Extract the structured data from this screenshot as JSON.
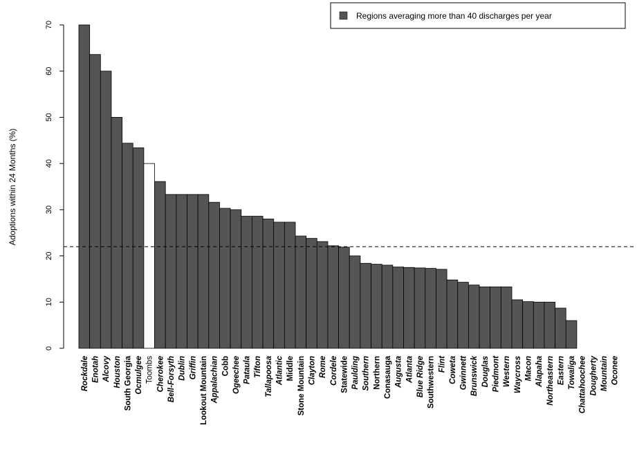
{
  "chart_data": {
    "type": "bar",
    "title": "",
    "xlabel": "",
    "ylabel": "Adoptions within 24 Months (%)",
    "ylim": [
      0,
      70
    ],
    "yticks": [
      0,
      10,
      20,
      30,
      40,
      50,
      60,
      70
    ],
    "reference_line": 22,
    "legend": {
      "label": "Regions averaging more than 40 discharges per year",
      "color": "#555555",
      "placement": "top-right"
    },
    "colors": {
      "high_volume": "#555555",
      "low_volume": "#ffffff",
      "outline": "#000000"
    },
    "categories": [
      "Rockdale",
      "Enotah",
      "Alcovy",
      "Houston",
      "South Georgia",
      "Ocmulgee",
      "Toombs",
      "Cherokee",
      "Bell-Forsyth",
      "Dublin",
      "Griffin",
      "Lookout Mountain",
      "Appalachian",
      "Cobb",
      "Ogeechee",
      "Pataula",
      "Tifton",
      "Tallapoosa",
      "Atlantic",
      "Middle",
      "Stone Mountain",
      "Clayton",
      "Rome",
      "Cordele",
      "Statewide",
      "Paulding",
      "Southern",
      "Northern",
      "Conasauga",
      "Augusta",
      "Atlanta",
      "Blue Ridge",
      "Southwestern",
      "Flint",
      "Coweta",
      "Gwinnett",
      "Brunswick",
      "Douglas",
      "Piedmont",
      "Western",
      "Waycross",
      "Macon",
      "Alapaha",
      "Northeastern",
      "Eastern",
      "Towaliga",
      "Chattahoochee",
      "Dougherty",
      "Mountain",
      "Oconee"
    ],
    "values": [
      70,
      63.6,
      60,
      50,
      44.4,
      43.4,
      40,
      36.1,
      33.3,
      33.3,
      33.3,
      33.3,
      31.6,
      30.3,
      30,
      28.6,
      28.6,
      28,
      27.3,
      27.3,
      24.3,
      23.8,
      23.1,
      22.2,
      21.9,
      20,
      18.4,
      18.2,
      18,
      17.6,
      17.5,
      17.4,
      17.3,
      17.1,
      14.8,
      14.3,
      13.7,
      13.3,
      13.3,
      13.3,
      10.5,
      10.1,
      10,
      10,
      8.7,
      6,
      0,
      0,
      0,
      0
    ],
    "high_volume": [
      true,
      true,
      true,
      true,
      true,
      true,
      false,
      true,
      true,
      true,
      true,
      true,
      true,
      true,
      true,
      true,
      true,
      true,
      true,
      true,
      true,
      true,
      true,
      true,
      true,
      true,
      true,
      true,
      true,
      true,
      true,
      true,
      true,
      true,
      true,
      true,
      true,
      true,
      true,
      true,
      true,
      true,
      true,
      true,
      true,
      true,
      true,
      true,
      true,
      true
    ],
    "label_style": [
      "italic",
      "italic",
      "italic",
      "italic",
      "bold",
      "italic",
      "plain",
      "italic",
      "italic",
      "italic",
      "italic",
      "bold",
      "italic",
      "bold",
      "italic",
      "italic",
      "italic",
      "italic",
      "italic",
      "bold",
      "bold",
      "italic",
      "italic",
      "italic",
      "bold",
      "italic",
      "italic",
      "bold",
      "bold",
      "italic",
      "italic",
      "italic",
      "bold",
      "italic",
      "italic",
      "italic",
      "italic",
      "italic",
      "italic",
      "italic",
      "italic",
      "italic",
      "italic",
      "italic",
      "italic",
      "italic",
      "italic",
      "italic",
      "italic",
      "italic"
    ]
  }
}
